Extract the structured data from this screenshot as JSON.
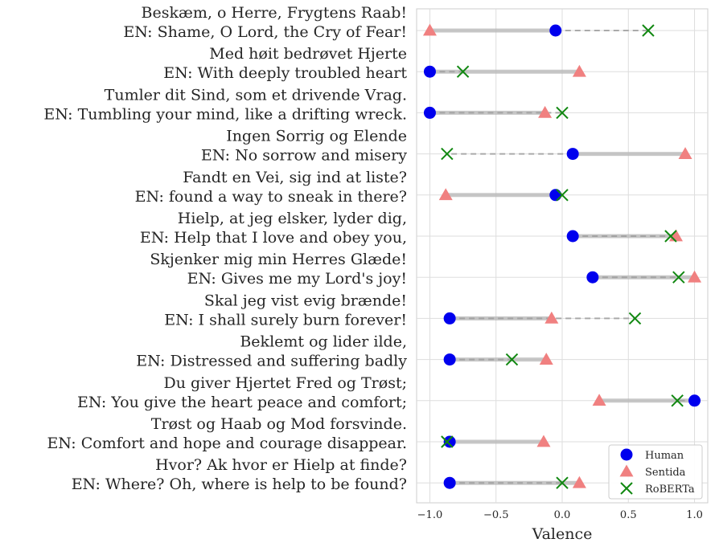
{
  "chart_data": {
    "type": "scatter",
    "xlabel": "Valence",
    "xlim": [
      -1.1,
      1.1
    ],
    "xticks": [
      {
        "value": -1.0,
        "label": "−1.0"
      },
      {
        "value": -0.5,
        "label": "−0.5"
      },
      {
        "value": 0.0,
        "label": "0.0"
      },
      {
        "value": 0.5,
        "label": "0.5"
      },
      {
        "value": 1.0,
        "label": "1.0"
      }
    ],
    "grid": true,
    "legend_position": "bottom-right",
    "categories": [
      {
        "line1": "Beskæm, o Herre, Frygtens Raab!",
        "line2": "EN: Shame, O Lord, the Cry of Fear!"
      },
      {
        "line1": "Med høit bedrøvet Hjerte",
        "line2": "EN: With deeply troubled heart"
      },
      {
        "line1": "Tumler dit Sind, som et drivende Vrag.",
        "line2": "EN: Tumbling your mind, like a drifting wreck."
      },
      {
        "line1": "Ingen Sorrig og Elende",
        "line2": "EN: No sorrow and misery"
      },
      {
        "line1": "Fandt en Vei, sig ind at liste?",
        "line2": "EN: found a way to sneak in there?"
      },
      {
        "line1": "Hielp, at jeg elsker, lyder dig,",
        "line2": "EN: Help that I love and obey you,"
      },
      {
        "line1": "Skjenker mig min Herres Glæde!",
        "line2": "EN: Gives me my Lord's joy!"
      },
      {
        "line1": "Skal jeg vist evig brænde!",
        "line2": "EN: I shall surely burn forever!"
      },
      {
        "line1": "Beklemt og lider ilde,",
        "line2": "EN: Distressed and suffering badly"
      },
      {
        "line1": "Du giver Hjertet Fred og Trøst;",
        "line2": "EN: You give the heart peace and comfort;"
      },
      {
        "line1": "Trøst og Haab og Mod forsvinde.",
        "line2": "EN: Comfort and hope and courage disappear."
      },
      {
        "line1": "Hvor? Ak hvor er Hielp at finde?",
        "line2": "EN: Where? Oh, where is help to be found?"
      }
    ],
    "series": [
      {
        "name": "Human",
        "marker": "circle",
        "color": "#0000ee",
        "values": [
          -0.05,
          -1.0,
          -1.0,
          0.08,
          -0.05,
          0.08,
          0.23,
          -0.85,
          -0.85,
          1.0,
          -0.85,
          -0.85
        ]
      },
      {
        "name": "Sentida",
        "marker": "triangle",
        "color": "#f08080",
        "values": [
          -1.0,
          0.13,
          -0.13,
          0.93,
          -0.88,
          0.86,
          1.0,
          -0.08,
          -0.12,
          0.28,
          -0.14,
          0.13
        ]
      },
      {
        "name": "RoBERTa",
        "marker": "x",
        "color": "#118811",
        "values": [
          0.65,
          -0.75,
          0.0,
          -0.87,
          0.0,
          0.82,
          0.88,
          0.55,
          -0.38,
          0.87,
          -0.87,
          0.0
        ]
      }
    ]
  }
}
